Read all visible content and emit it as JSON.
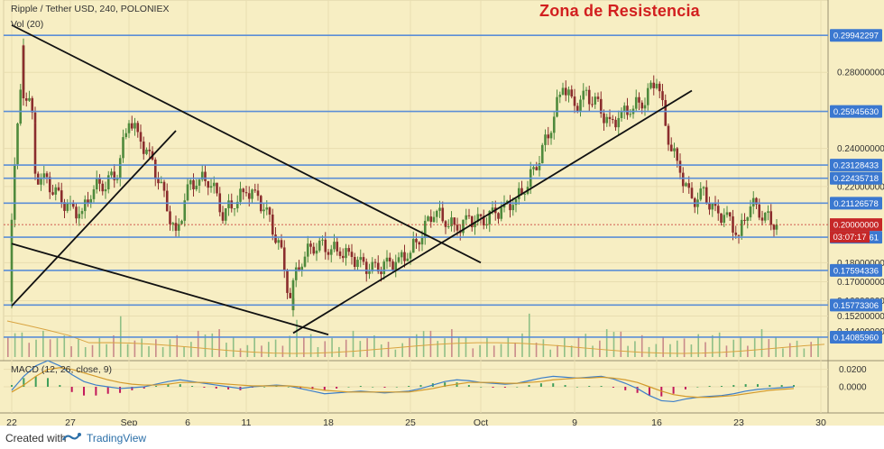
{
  "header": {
    "symbol_line": "Ripple / Tether USD, 240, POLONIEX",
    "volume_line": "Vol (20)",
    "annotation_title": "Zona de Resistencia"
  },
  "macd_panel": {
    "label": "MACD (12, 26, close, 9)"
  },
  "footer": {
    "created_label": "Created with",
    "brand": "TradingView"
  },
  "colors": {
    "background": "#f7eec3",
    "grid": "#e8ddb0",
    "hline": "#5b8ed6",
    "label_bg": "#3b78d0",
    "price_label_bg": "#c62828",
    "candle_up": "#4f8a3c",
    "candle_down": "#8b2d2d",
    "trendline": "#111111",
    "macd_line": "#3d7fc9",
    "signal_line": "#d39a2b",
    "hist_pos": "#3e9e5b",
    "hist_neg": "#c2185b",
    "annotation": "#d21f1f"
  },
  "chart_data": [
    {
      "type": "candlestick",
      "title": "Ripple / Tether USD, 240, POLONIEX",
      "x_tick_labels": [
        "22",
        "27",
        "Sep",
        "6",
        "11",
        "18",
        "25",
        "Oct",
        "9",
        "16",
        "23",
        "30"
      ],
      "y_tick_labels": [
        "0.28000000",
        "0.24000000",
        "0.22000000",
        "0.18000000",
        "0.17000000",
        "0.16000000",
        "0.15200000",
        "0.14400000"
      ],
      "ylim": [
        0.138,
        0.318
      ],
      "horizontal_levels": [
        0.29942297,
        0.2594563,
        0.23128433,
        0.22435718,
        0.21126578,
        0.19336961,
        0.17594336,
        0.15773306,
        0.1408596
      ],
      "level_labels": [
        "0.29942297",
        "0.25945630",
        "0.23128433",
        "0.22435718",
        "0.21126578",
        "0.19336961",
        "0.17594336",
        "0.15773306",
        "0.14085960"
      ],
      "current_price": 0.2,
      "current_price_label": "0.20000000",
      "countdown_label": "03:07:17",
      "trendlines": [
        {
          "name": "falling-resistance",
          "from": [
            "Aug 22",
            0.3048
          ],
          "to": [
            "Oct 1",
            0.18
          ]
        },
        {
          "name": "lower-falling",
          "from": [
            "Aug 22",
            0.19
          ],
          "to": [
            "Sep 18",
            0.1422
          ]
        },
        {
          "name": "early-rising",
          "from": [
            "Aug 22",
            0.1573
          ],
          "to": [
            "Sep 5",
            0.2493
          ]
        },
        {
          "name": "rising-support",
          "from": [
            "Sep 15",
            0.143
          ],
          "to": [
            "Oct 19",
            0.2704
          ]
        }
      ],
      "series": [
        {
          "name": "Vol (20)",
          "type": "volume",
          "values": [
            1.6,
            1.2,
            0.9,
            1.0,
            0.8,
            0.9,
            1.1,
            0.8,
            0.7,
            0.6,
            0.7,
            0.8,
            0.6,
            0.7,
            0.9,
            1.0,
            1.4,
            0.8,
            0.7,
            0.6,
            0.6,
            0.7,
            0.8,
            0.9,
            0.8,
            0.7,
            0.7,
            0.9,
            1.4,
            1.0,
            0.9,
            0.8,
            0.8,
            0.7,
            0.6,
            0.7,
            0.8,
            0.7,
            0.6,
            0.7,
            0.9,
            1.2,
            1.1,
            0.9,
            0.8,
            0.8,
            0.7,
            0.7,
            0.8,
            0.9,
            1.0,
            0.8,
            0.7,
            0.7,
            0.6,
            0.6,
            0.7,
            0.7
          ]
        }
      ],
      "price_path": [
        [
          "Aug 22",
          0.16
        ],
        [
          "Aug 22",
          0.205
        ],
        [
          "Aug 23",
          0.298
        ],
        [
          "Aug 23",
          0.27
        ],
        [
          "Aug 24",
          0.255
        ],
        [
          "Aug 24",
          0.226
        ],
        [
          "Aug 25",
          0.222
        ],
        [
          "Aug 26",
          0.214
        ],
        [
          "Aug 27",
          0.208
        ],
        [
          "Aug 28",
          0.206
        ],
        [
          "Aug 29",
          0.22
        ],
        [
          "Aug 30",
          0.222
        ],
        [
          "Aug 31",
          0.228
        ],
        [
          "Sep 1",
          0.256
        ],
        [
          "Sep 2",
          0.244
        ],
        [
          "Sep 3",
          0.232
        ],
        [
          "Sep 4",
          0.214
        ],
        [
          "Sep 5",
          0.193
        ],
        [
          "Sep 6",
          0.219
        ],
        [
          "Sep 7",
          0.224
        ],
        [
          "Sep 8",
          0.223
        ],
        [
          "Sep 9",
          0.206
        ],
        [
          "Sep 10",
          0.212
        ],
        [
          "Sep 11",
          0.218
        ],
        [
          "Sep 12",
          0.214
        ],
        [
          "Sep 13",
          0.202
        ],
        [
          "Sep 14",
          0.184
        ],
        [
          "Sep 15",
          0.152
        ],
        [
          "Sep 15",
          0.17
        ],
        [
          "Sep 16",
          0.185
        ],
        [
          "Sep 17",
          0.19
        ],
        [
          "Sep 18",
          0.188
        ],
        [
          "Sep 19",
          0.186
        ],
        [
          "Sep 20",
          0.183
        ],
        [
          "Sep 21",
          0.178
        ],
        [
          "Sep 22",
          0.176
        ],
        [
          "Sep 23",
          0.179
        ],
        [
          "Sep 24",
          0.181
        ],
        [
          "Sep 25",
          0.186
        ],
        [
          "Sep 26",
          0.196
        ],
        [
          "Sep 27",
          0.208
        ],
        [
          "Sep 28",
          0.202
        ],
        [
          "Sep 29",
          0.198
        ],
        [
          "Sep 30",
          0.203
        ],
        [
          "Oct 1",
          0.201
        ],
        [
          "Oct 2",
          0.205
        ],
        [
          "Oct 3",
          0.209
        ],
        [
          "Oct 4",
          0.213
        ],
        [
          "Oct 5",
          0.222
        ],
        [
          "Oct 6",
          0.236
        ],
        [
          "Oct 7",
          0.252
        ],
        [
          "Oct 8",
          0.274
        ],
        [
          "Oct 9",
          0.262
        ],
        [
          "Oct 10",
          0.268
        ],
        [
          "Oct 11",
          0.262
        ],
        [
          "Oct 12",
          0.252
        ],
        [
          "Oct 13",
          0.258
        ],
        [
          "Oct 14",
          0.262
        ],
        [
          "Oct 15",
          0.266
        ],
        [
          "Oct 16",
          0.278
        ],
        [
          "Oct 17",
          0.245
        ],
        [
          "Oct 18",
          0.228
        ],
        [
          "Oct 19",
          0.212
        ],
        [
          "Oct 20",
          0.216
        ],
        [
          "Oct 21",
          0.206
        ],
        [
          "Oct 22",
          0.204
        ],
        [
          "Oct 23",
          0.194
        ],
        [
          "Oct 24",
          0.212
        ],
        [
          "Oct 25",
          0.206
        ],
        [
          "Oct 26",
          0.201
        ]
      ]
    },
    {
      "type": "line",
      "title": "MACD (12, 26, close, 9)",
      "y_tick_labels": [
        "0.0200",
        "0.0000"
      ],
      "ylim": [
        -0.03,
        0.03
      ],
      "series": [
        {
          "name": "MACD",
          "values": [
            -0.004,
            0.012,
            0.024,
            0.03,
            0.024,
            0.014,
            0.006,
            0.002,
            0.0,
            -0.002,
            -0.001,
            0.0,
            0.003,
            0.006,
            0.008,
            0.006,
            0.004,
            0.002,
            0.0,
            -0.002,
            0.0,
            0.001,
            0.002,
            0.001,
            -0.002,
            -0.005,
            -0.008,
            -0.007,
            -0.006,
            -0.005,
            -0.006,
            -0.007,
            -0.006,
            -0.005,
            -0.002,
            0.002,
            0.006,
            0.008,
            0.007,
            0.005,
            0.004,
            0.003,
            0.004,
            0.007,
            0.01,
            0.012,
            0.011,
            0.01,
            0.011,
            0.012,
            0.009,
            0.004,
            -0.002,
            -0.01,
            -0.016,
            -0.017,
            -0.014,
            -0.012,
            -0.011,
            -0.01,
            -0.008,
            -0.005,
            -0.003,
            -0.002,
            -0.001,
            0.0
          ]
        },
        {
          "name": "Signal",
          "values": [
            -0.006,
            0.002,
            0.012,
            0.02,
            0.022,
            0.02,
            0.016,
            0.012,
            0.008,
            0.005,
            0.003,
            0.002,
            0.002,
            0.003,
            0.005,
            0.005,
            0.005,
            0.004,
            0.003,
            0.002,
            0.001,
            0.001,
            0.001,
            0.001,
            0.0,
            -0.002,
            -0.004,
            -0.005,
            -0.006,
            -0.006,
            -0.006,
            -0.006,
            -0.006,
            -0.006,
            -0.004,
            -0.002,
            0.001,
            0.003,
            0.005,
            0.005,
            0.005,
            0.004,
            0.004,
            0.005,
            0.006,
            0.008,
            0.009,
            0.01,
            0.01,
            0.011,
            0.01,
            0.008,
            0.005,
            0.0,
            -0.005,
            -0.009,
            -0.011,
            -0.012,
            -0.012,
            -0.011,
            -0.01,
            -0.008,
            -0.006,
            -0.004,
            -0.003,
            -0.002
          ]
        }
      ]
    }
  ]
}
